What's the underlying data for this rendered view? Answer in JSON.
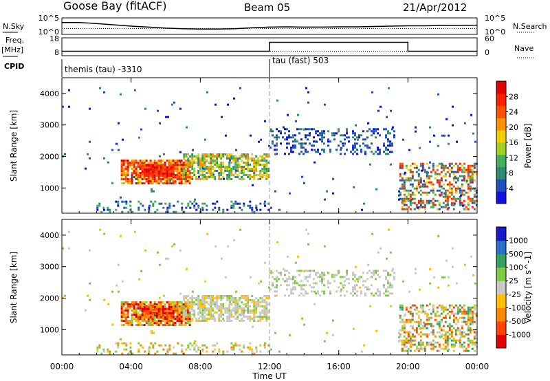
{
  "header": {
    "station": "Goose Bay (fitACF)",
    "beam": "Beam 05",
    "date": "21/Apr/2012"
  },
  "left_labels": {
    "nsky": "N.Sky",
    "freq": "Freq.",
    "freq_unit": "[MHz]",
    "cpid": "CPID"
  },
  "right_labels": {
    "nsearch": "N.Search",
    "nave": "Nave"
  },
  "noise_panel": {
    "left_ticks": [
      "10^5",
      "10^0"
    ],
    "right_ticks": [
      "10^5",
      "10^0"
    ]
  },
  "freq_panel": {
    "left_ticks": [
      "18",
      "8"
    ],
    "right_ticks": [
      "60",
      "0"
    ]
  },
  "cpid_panel": {
    "labels": [
      "themis (tau) -3310",
      "tau (fast) 503"
    ]
  },
  "colors": {
    "power_scale": [
      "#1010e0",
      "#2050c0",
      "#2e8a70",
      "#40b060",
      "#a0d020",
      "#f0d000",
      "#ff9000",
      "#ff5000",
      "#ff2000",
      "#e00000"
    ],
    "velocity_scale": [
      "#1a1acc",
      "#2b70c8",
      "#36a060",
      "#80cc40",
      "#c8c8c8",
      "#ffc000",
      "#ff8800",
      "#ff4400",
      "#e00000"
    ],
    "ground_scatter": "#c0c0c0"
  },
  "chart_data": {
    "type": "heatmap",
    "x_unit": "Time UT",
    "xlabel": "Time UT",
    "xlim": [
      "00:00",
      "24:00"
    ],
    "x_ticks": [
      "00:00",
      "04:00",
      "08:00",
      "12:00",
      "16:00",
      "20:00",
      "00:00"
    ],
    "ylabel": "Slant Range [km]",
    "ylim": [
      200,
      4500
    ],
    "y_ticks": [
      1000,
      2000,
      3000,
      4000
    ],
    "power": {
      "colorbar_label": "Power [dB]",
      "colorbar_ticks": [
        4,
        8,
        12,
        16,
        20,
        24,
        28
      ],
      "range": [
        0,
        30
      ]
    },
    "velocity": {
      "colorbar_label": "Velocity [m s^-1]",
      "colorbar_ticks": [
        1000,
        500,
        100,
        25,
        -25,
        -100,
        -500,
        -1000
      ]
    },
    "noise_sky": {
      "hours": [
        0.0,
        1.0,
        2.0,
        3.0,
        4.0,
        5.0,
        6.0,
        7.0,
        8.0,
        9.0,
        10.0,
        11.0,
        12.0,
        13.0,
        14.0,
        15.0,
        16.0,
        17.0,
        18.0,
        19.0,
        20.0,
        21.0,
        22.0,
        23.0,
        24.0
      ],
      "log10_values": [
        3.6,
        3.6,
        3.3,
        2.9,
        2.5,
        2.2,
        1.9,
        1.7,
        1.6,
        1.6,
        1.7,
        2.0,
        2.2,
        2.3,
        2.2,
        2.2,
        2.3,
        2.3,
        2.4,
        2.5,
        2.6,
        2.6,
        2.7,
        2.7,
        2.8
      ]
    },
    "frequency_mhz": {
      "segments": [
        {
          "start": "00:00",
          "end": "12:00",
          "value": 10.5
        },
        {
          "start": "12:00",
          "end": "20:00",
          "value": 15.5
        },
        {
          "start": "20:00",
          "end": "24:00",
          "value": 10.5
        }
      ]
    },
    "nave": {
      "segments": [
        {
          "start": "00:00",
          "end": "24:00",
          "value": 15
        }
      ]
    },
    "cpid_change_hour": 12.0
  }
}
